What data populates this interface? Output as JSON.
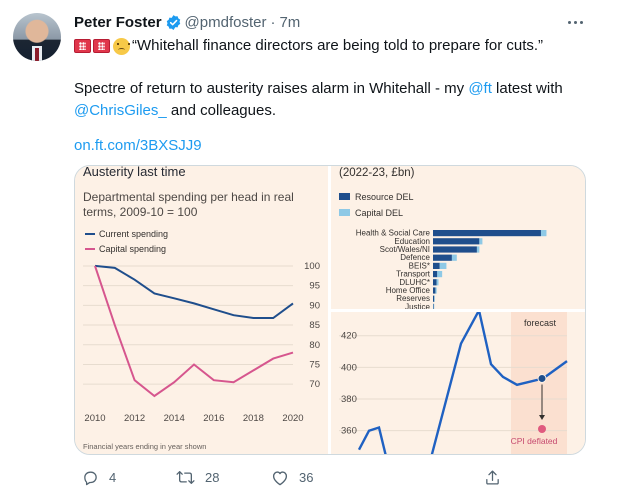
{
  "tweet": {
    "author_name": "Peter Foster",
    "handle": "@pmdfoster",
    "separator": "·",
    "time": "7m",
    "quote": "“Whitehall finance directors are being told to prepare for cuts.”",
    "body_before": "Spectre of return to austerity raises alarm in Whitehall - my ",
    "body_mention_ft": "@ft",
    "body_middle": " latest with",
    "body_mention_giles": "@ChrisGiles_",
    "body_after": " and colleagues.",
    "url": "on.ft.com/3BXSJJ9",
    "emojis": [
      "flag-icon",
      "flag-icon",
      "worried-face-icon"
    ]
  },
  "actions": {
    "reply_count": "4",
    "retweet_count": "28",
    "like_count": "36"
  },
  "colors": {
    "link": "#1d9bf0",
    "muted": "#536471",
    "chart_bg": "#fdf1e6",
    "current_spending": "#1f4e8c",
    "capital_spending": "#d6568e",
    "resource_del": "#1f4e8c",
    "capital_del": "#8ec9e6",
    "forecast_band": "#fbe0d0"
  },
  "chart_data": [
    {
      "type": "line",
      "title": "Austerity last time",
      "subtitle": "Departmental spending per head in real terms, 2009-10 = 100",
      "footnote": "Financial years ending in year shown",
      "x": [
        2010,
        2011,
        2012,
        2013,
        2014,
        2015,
        2016,
        2017,
        2018,
        2019,
        2020
      ],
      "x_ticks": [
        "2010",
        "2012",
        "2014",
        "2016",
        "2018",
        "2020"
      ],
      "y_ticks": [
        "100",
        "95",
        "90",
        "85",
        "80",
        "75",
        "70"
      ],
      "ylim": [
        67,
        101
      ],
      "series": [
        {
          "name": "Current spending",
          "values": [
            100,
            99.5,
            96.5,
            93,
            91.8,
            90.5,
            89,
            87.5,
            86.8,
            86.8,
            90.5
          ]
        },
        {
          "name": "Capital spending",
          "values": [
            100,
            85,
            71,
            67,
            70.5,
            75,
            71,
            70.5,
            73.5,
            76.5,
            78
          ]
        }
      ],
      "grid": true,
      "legend": "top-left"
    },
    {
      "type": "bar",
      "subtitle": "(2022-23, £bn)",
      "categories": [
        "Health & Social Care",
        "Education",
        "Scot/Wales/NI",
        "Defence",
        "BEIS*",
        "Transport",
        "DLUHC*",
        "Home Office",
        "Reserves",
        "Justice"
      ],
      "series": [
        {
          "name": "Resource DEL",
          "values": [
            177,
            76,
            72,
            31,
            11,
            7,
            6,
            4,
            2,
            1
          ]
        },
        {
          "name": "Capital DEL",
          "values": [
            9,
            5,
            4,
            8,
            11,
            8,
            3,
            2,
            1,
            1
          ]
        }
      ],
      "legend": "top-left"
    },
    {
      "type": "line",
      "y_ticks": [
        "420",
        "400",
        "380",
        "360"
      ],
      "ylim": [
        344,
        435
      ],
      "series": [
        {
          "name": "",
          "values": [
            348,
            360,
            362,
            336,
            338,
            415,
            436,
            402,
            394,
            389,
            393,
            404
          ]
        }
      ],
      "annotations": [
        "forecast",
        "CPI deflated"
      ]
    }
  ]
}
